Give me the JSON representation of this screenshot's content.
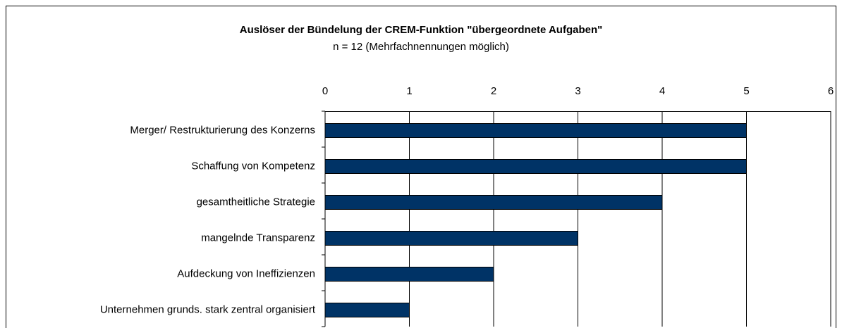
{
  "chart_data": {
    "type": "bar",
    "orientation": "horizontal",
    "title": "Auslöser der Bündelung der CREM-Funktion \"übergeordnete Aufgaben\"",
    "subtitle": "n = 12 (Mehrfachnennungen möglich)",
    "categories": [
      "Merger/ Restrukturierung des Konzerns",
      "Schaffung von Kompetenz",
      "gesamtheitliche Strategie",
      "mangelnde Transparenz",
      "Aufdeckung von Ineffizienzen",
      "Unternehmen grunds. stark zentral organisiert"
    ],
    "values": [
      5,
      5,
      4,
      3,
      2,
      1
    ],
    "color": "#003366",
    "xlim": [
      0,
      6
    ],
    "xticks": [
      0,
      1,
      2,
      3,
      4,
      5,
      6
    ],
    "grid": true
  }
}
